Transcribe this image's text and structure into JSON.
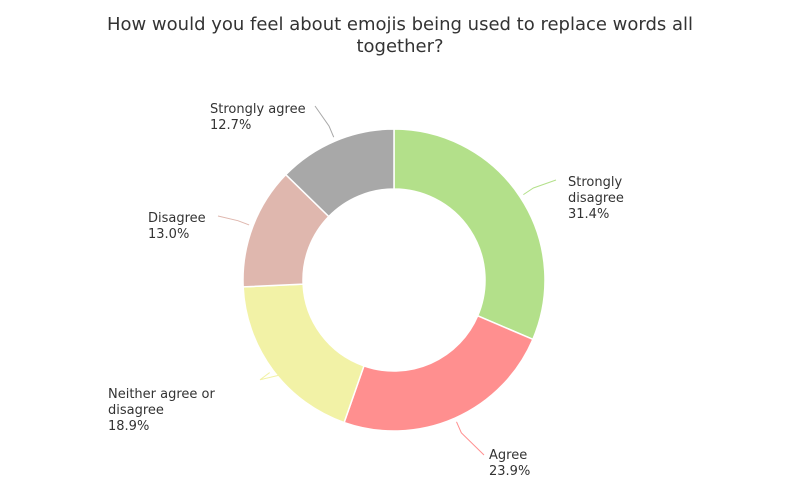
{
  "chart_data": {
    "type": "pie",
    "variant": "donut",
    "title": "How would you feel about emojis being used to replace words all together?",
    "title_lines": [
      "How would you feel about emojis being used to replace words all",
      "together?"
    ],
    "slices": [
      {
        "label_lines": [
          "Strongly",
          "disagree"
        ],
        "label": "Strongly disagree",
        "value": 31.4,
        "value_text": "31.4%",
        "color": "#b3e08a"
      },
      {
        "label_lines": [
          "Agree"
        ],
        "label": "Agree",
        "value": 23.9,
        "value_text": "23.9%",
        "color": "#ff8f8f"
      },
      {
        "label_lines": [
          "Neither agree or",
          "disagree"
        ],
        "label": "Neither agree or disagree",
        "value": 18.9,
        "value_text": "18.9%",
        "color": "#f2f2a6"
      },
      {
        "label_lines": [
          "Disagree"
        ],
        "label": "Disagree",
        "value": 13.0,
        "value_text": "13.0%",
        "color": "#dfb7ae"
      },
      {
        "label_lines": [
          "Strongly agree"
        ],
        "label": "Strongly agree",
        "value": 12.7,
        "value_text": "12.7%",
        "color": "#a8a8a8"
      }
    ],
    "start_angle_deg": 0,
    "direction": "clockwise",
    "legend": "none"
  }
}
